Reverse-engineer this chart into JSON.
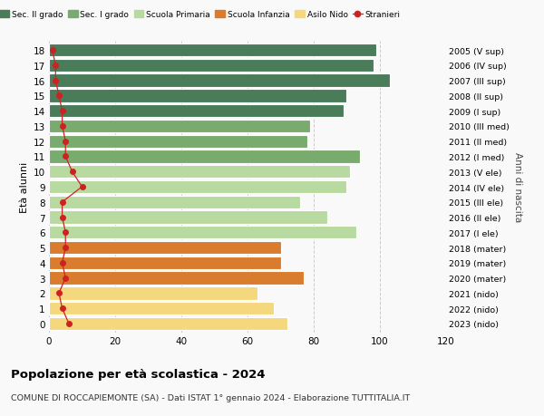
{
  "ages": [
    18,
    17,
    16,
    15,
    14,
    13,
    12,
    11,
    10,
    9,
    8,
    7,
    6,
    5,
    4,
    3,
    2,
    1,
    0
  ],
  "right_labels": [
    "2005 (V sup)",
    "2006 (IV sup)",
    "2007 (III sup)",
    "2008 (II sup)",
    "2009 (I sup)",
    "2010 (III med)",
    "2011 (II med)",
    "2012 (I med)",
    "2013 (V ele)",
    "2014 (IV ele)",
    "2015 (III ele)",
    "2016 (II ele)",
    "2017 (I ele)",
    "2018 (mater)",
    "2019 (mater)",
    "2020 (mater)",
    "2021 (nido)",
    "2022 (nido)",
    "2023 (nido)"
  ],
  "bar_values": [
    99,
    98,
    103,
    90,
    89,
    79,
    78,
    94,
    91,
    90,
    76,
    84,
    93,
    70,
    70,
    77,
    63,
    68,
    72
  ],
  "stranieri_values": [
    1,
    2,
    2,
    3,
    4,
    4,
    5,
    5,
    7,
    10,
    4,
    4,
    5,
    5,
    4,
    5,
    3,
    4,
    6
  ],
  "bar_colors": [
    "#4a7c59",
    "#4a7c59",
    "#4a7c59",
    "#4a7c59",
    "#4a7c59",
    "#7aab6e",
    "#7aab6e",
    "#7aab6e",
    "#b8d9a0",
    "#b8d9a0",
    "#b8d9a0",
    "#b8d9a0",
    "#b8d9a0",
    "#d97c2e",
    "#d97c2e",
    "#d97c2e",
    "#f5d87e",
    "#f5d87e",
    "#f5d87e"
  ],
  "legend_labels": [
    "Sec. II grado",
    "Sec. I grado",
    "Scuola Primaria",
    "Scuola Infanzia",
    "Asilo Nido",
    "Stranieri"
  ],
  "legend_colors": [
    "#4a7c59",
    "#7aab6e",
    "#b8d9a0",
    "#d97c2e",
    "#f5d87e",
    "#cc2222"
  ],
  "ylabel": "Età alunni",
  "right_ylabel": "Anni di nascita",
  "title": "Popolazione per età scolastica - 2024",
  "subtitle": "COMUNE DI ROCCAPIEMONTE (SA) - Dati ISTAT 1° gennaio 2024 - Elaborazione TUTTITALIA.IT",
  "xlim": [
    0,
    120
  ],
  "background_color": "#f9f9f9",
  "grid_color": "#cccccc",
  "stranieri_color": "#cc2222",
  "bar_height": 0.85
}
